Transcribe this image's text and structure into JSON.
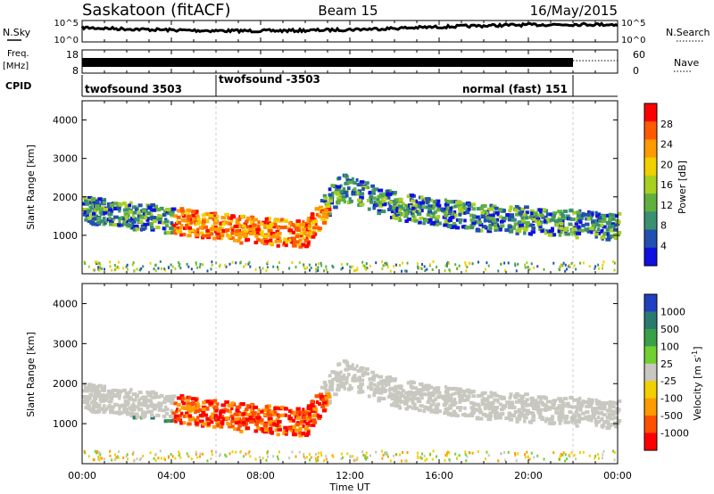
{
  "header": {
    "station": "Saskatoon (fitACF)",
    "beam": "Beam 15",
    "date": "16/May/2015"
  },
  "nsky": {
    "left_label": "N.Sky",
    "right_label": "N.Search",
    "ticks_left": [
      "10^5",
      "10^0"
    ],
    "ticks_right": [
      "10^5",
      "10^0"
    ]
  },
  "freq": {
    "label_top": "Freq.",
    "label_unit": "[MHz]",
    "ticks_left": [
      "18",
      "8"
    ],
    "right_label": "Nave",
    "ticks_right": [
      "60",
      "0"
    ]
  },
  "cpid": {
    "label": "CPID",
    "segments": [
      {
        "label": "twofsound 3503",
        "start_hour": 0,
        "end_hour": 6
      },
      {
        "label": "twofsound -3503",
        "start_hour": 6,
        "end_hour": 22
      },
      {
        "label": "normal (fast) 151",
        "start_hour": 22,
        "end_hour": 24
      }
    ]
  },
  "chart_data": [
    {
      "type": "heatmap",
      "name": "power",
      "ylabel": "Slant Range [km]",
      "ylim": [
        0,
        4500
      ],
      "yticks": [
        "1000",
        "2000",
        "3000",
        "4000"
      ],
      "xlim": [
        0,
        24
      ],
      "colorbar": {
        "label": "Power [dB]",
        "ticks": [
          "28",
          "24",
          "20",
          "16",
          "12",
          "8",
          "4"
        ],
        "colors": [
          "#ff0000",
          "#ff5a00",
          "#ff9a00",
          "#f0d000",
          "#a8d020",
          "#60b040",
          "#3a9070",
          "#2050b0",
          "#1010e0"
        ]
      }
    },
    {
      "type": "heatmap",
      "name": "velocity",
      "ylabel": "Slant Range [km]",
      "ylim": [
        0,
        4500
      ],
      "yticks": [
        "1000",
        "2000",
        "3000",
        "4000"
      ],
      "xlim": [
        0,
        24
      ],
      "colorbar": {
        "label": "Velocity [m s-1]",
        "ticks": [
          "1000",
          "500",
          "100",
          "25",
          "-25",
          "-100",
          "-500",
          "-1000"
        ],
        "colors": [
          "#2040c0",
          "#2a7a70",
          "#3aa048",
          "#70d030",
          "#c8c8c0",
          "#f0d000",
          "#ff9a00",
          "#ff5000",
          "#ff0000"
        ]
      }
    }
  ],
  "xaxis": {
    "label": "Time UT",
    "ticks": [
      "00:00",
      "04:00",
      "08:00",
      "12:00",
      "16:00",
      "20:00",
      "00:00"
    ]
  }
}
